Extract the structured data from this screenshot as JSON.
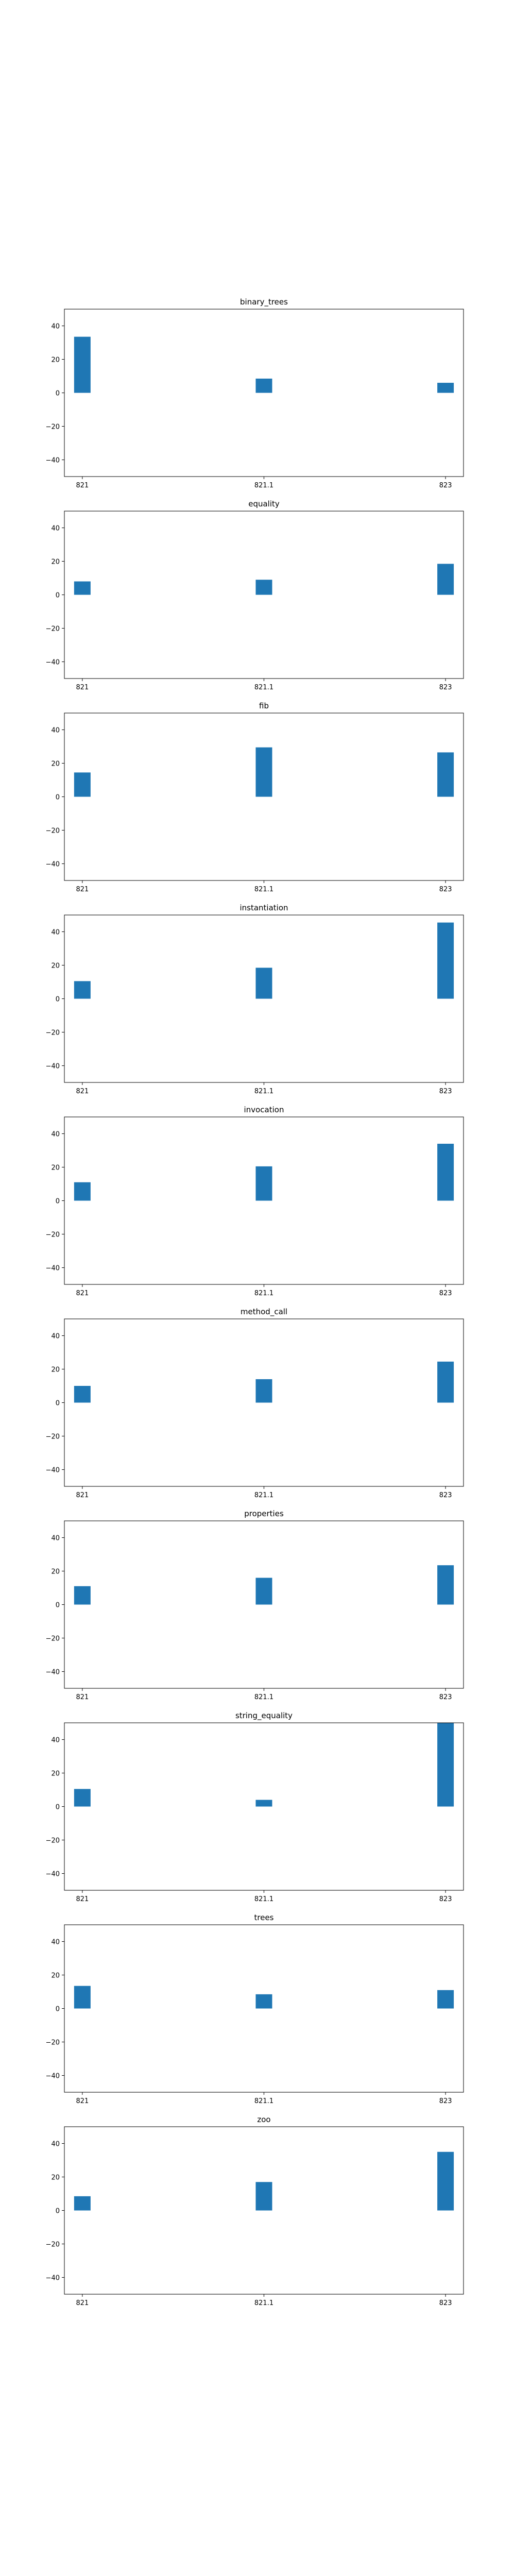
{
  "colors": {
    "bar": "#1f77b4",
    "axis": "#000000",
    "background": "#ffffff"
  },
  "chart_data": [
    {
      "type": "bar",
      "title": "binary_trees",
      "categories": [
        "821",
        "821.1",
        "823"
      ],
      "values": [
        33.5,
        8.5,
        6
      ],
      "ylim": [
        -50,
        50
      ],
      "yticks": [
        -40,
        -20,
        0,
        20,
        40
      ],
      "grid": false
    },
    {
      "type": "bar",
      "title": "equality",
      "categories": [
        "821",
        "821.1",
        "823"
      ],
      "values": [
        8,
        9,
        18.5
      ],
      "ylim": [
        -50,
        50
      ],
      "yticks": [
        -40,
        -20,
        0,
        20,
        40
      ],
      "grid": false
    },
    {
      "type": "bar",
      "title": "fib",
      "categories": [
        "821",
        "821.1",
        "823"
      ],
      "values": [
        14.5,
        29.5,
        26.5
      ],
      "ylim": [
        -50,
        50
      ],
      "yticks": [
        -40,
        -20,
        0,
        20,
        40
      ],
      "grid": false
    },
    {
      "type": "bar",
      "title": "instantiation",
      "categories": [
        "821",
        "821.1",
        "823"
      ],
      "values": [
        10.5,
        18.5,
        45.5
      ],
      "ylim": [
        -50,
        50
      ],
      "yticks": [
        -40,
        -20,
        0,
        20,
        40
      ],
      "grid": false
    },
    {
      "type": "bar",
      "title": "invocation",
      "categories": [
        "821",
        "821.1",
        "823"
      ],
      "values": [
        11,
        20.5,
        34
      ],
      "ylim": [
        -50,
        50
      ],
      "yticks": [
        -40,
        -20,
        0,
        20,
        40
      ],
      "grid": false
    },
    {
      "type": "bar",
      "title": "method_call",
      "categories": [
        "821",
        "821.1",
        "823"
      ],
      "values": [
        10,
        14,
        24.5
      ],
      "ylim": [
        -50,
        50
      ],
      "yticks": [
        -40,
        -20,
        0,
        20,
        40
      ],
      "grid": false
    },
    {
      "type": "bar",
      "title": "properties",
      "categories": [
        "821",
        "821.1",
        "823"
      ],
      "values": [
        11,
        16,
        23.5
      ],
      "ylim": [
        -50,
        50
      ],
      "yticks": [
        -40,
        -20,
        0,
        20,
        40
      ],
      "grid": false
    },
    {
      "type": "bar",
      "title": "string_equality",
      "categories": [
        "821",
        "821.1",
        "823"
      ],
      "values": [
        10.5,
        4,
        50
      ],
      "ylim": [
        -50,
        50
      ],
      "yticks": [
        -40,
        -20,
        0,
        20,
        40
      ],
      "grid": false
    },
    {
      "type": "bar",
      "title": "trees",
      "categories": [
        "821",
        "821.1",
        "823"
      ],
      "values": [
        13.5,
        8.5,
        11
      ],
      "ylim": [
        -50,
        50
      ],
      "yticks": [
        -40,
        -20,
        0,
        20,
        40
      ],
      "grid": false
    },
    {
      "type": "bar",
      "title": "zoo",
      "categories": [
        "821",
        "821.1",
        "823"
      ],
      "values": [
        8.5,
        17,
        35
      ],
      "ylim": [
        -50,
        50
      ],
      "yticks": [
        -40,
        -20,
        0,
        20,
        40
      ],
      "grid": false
    }
  ]
}
